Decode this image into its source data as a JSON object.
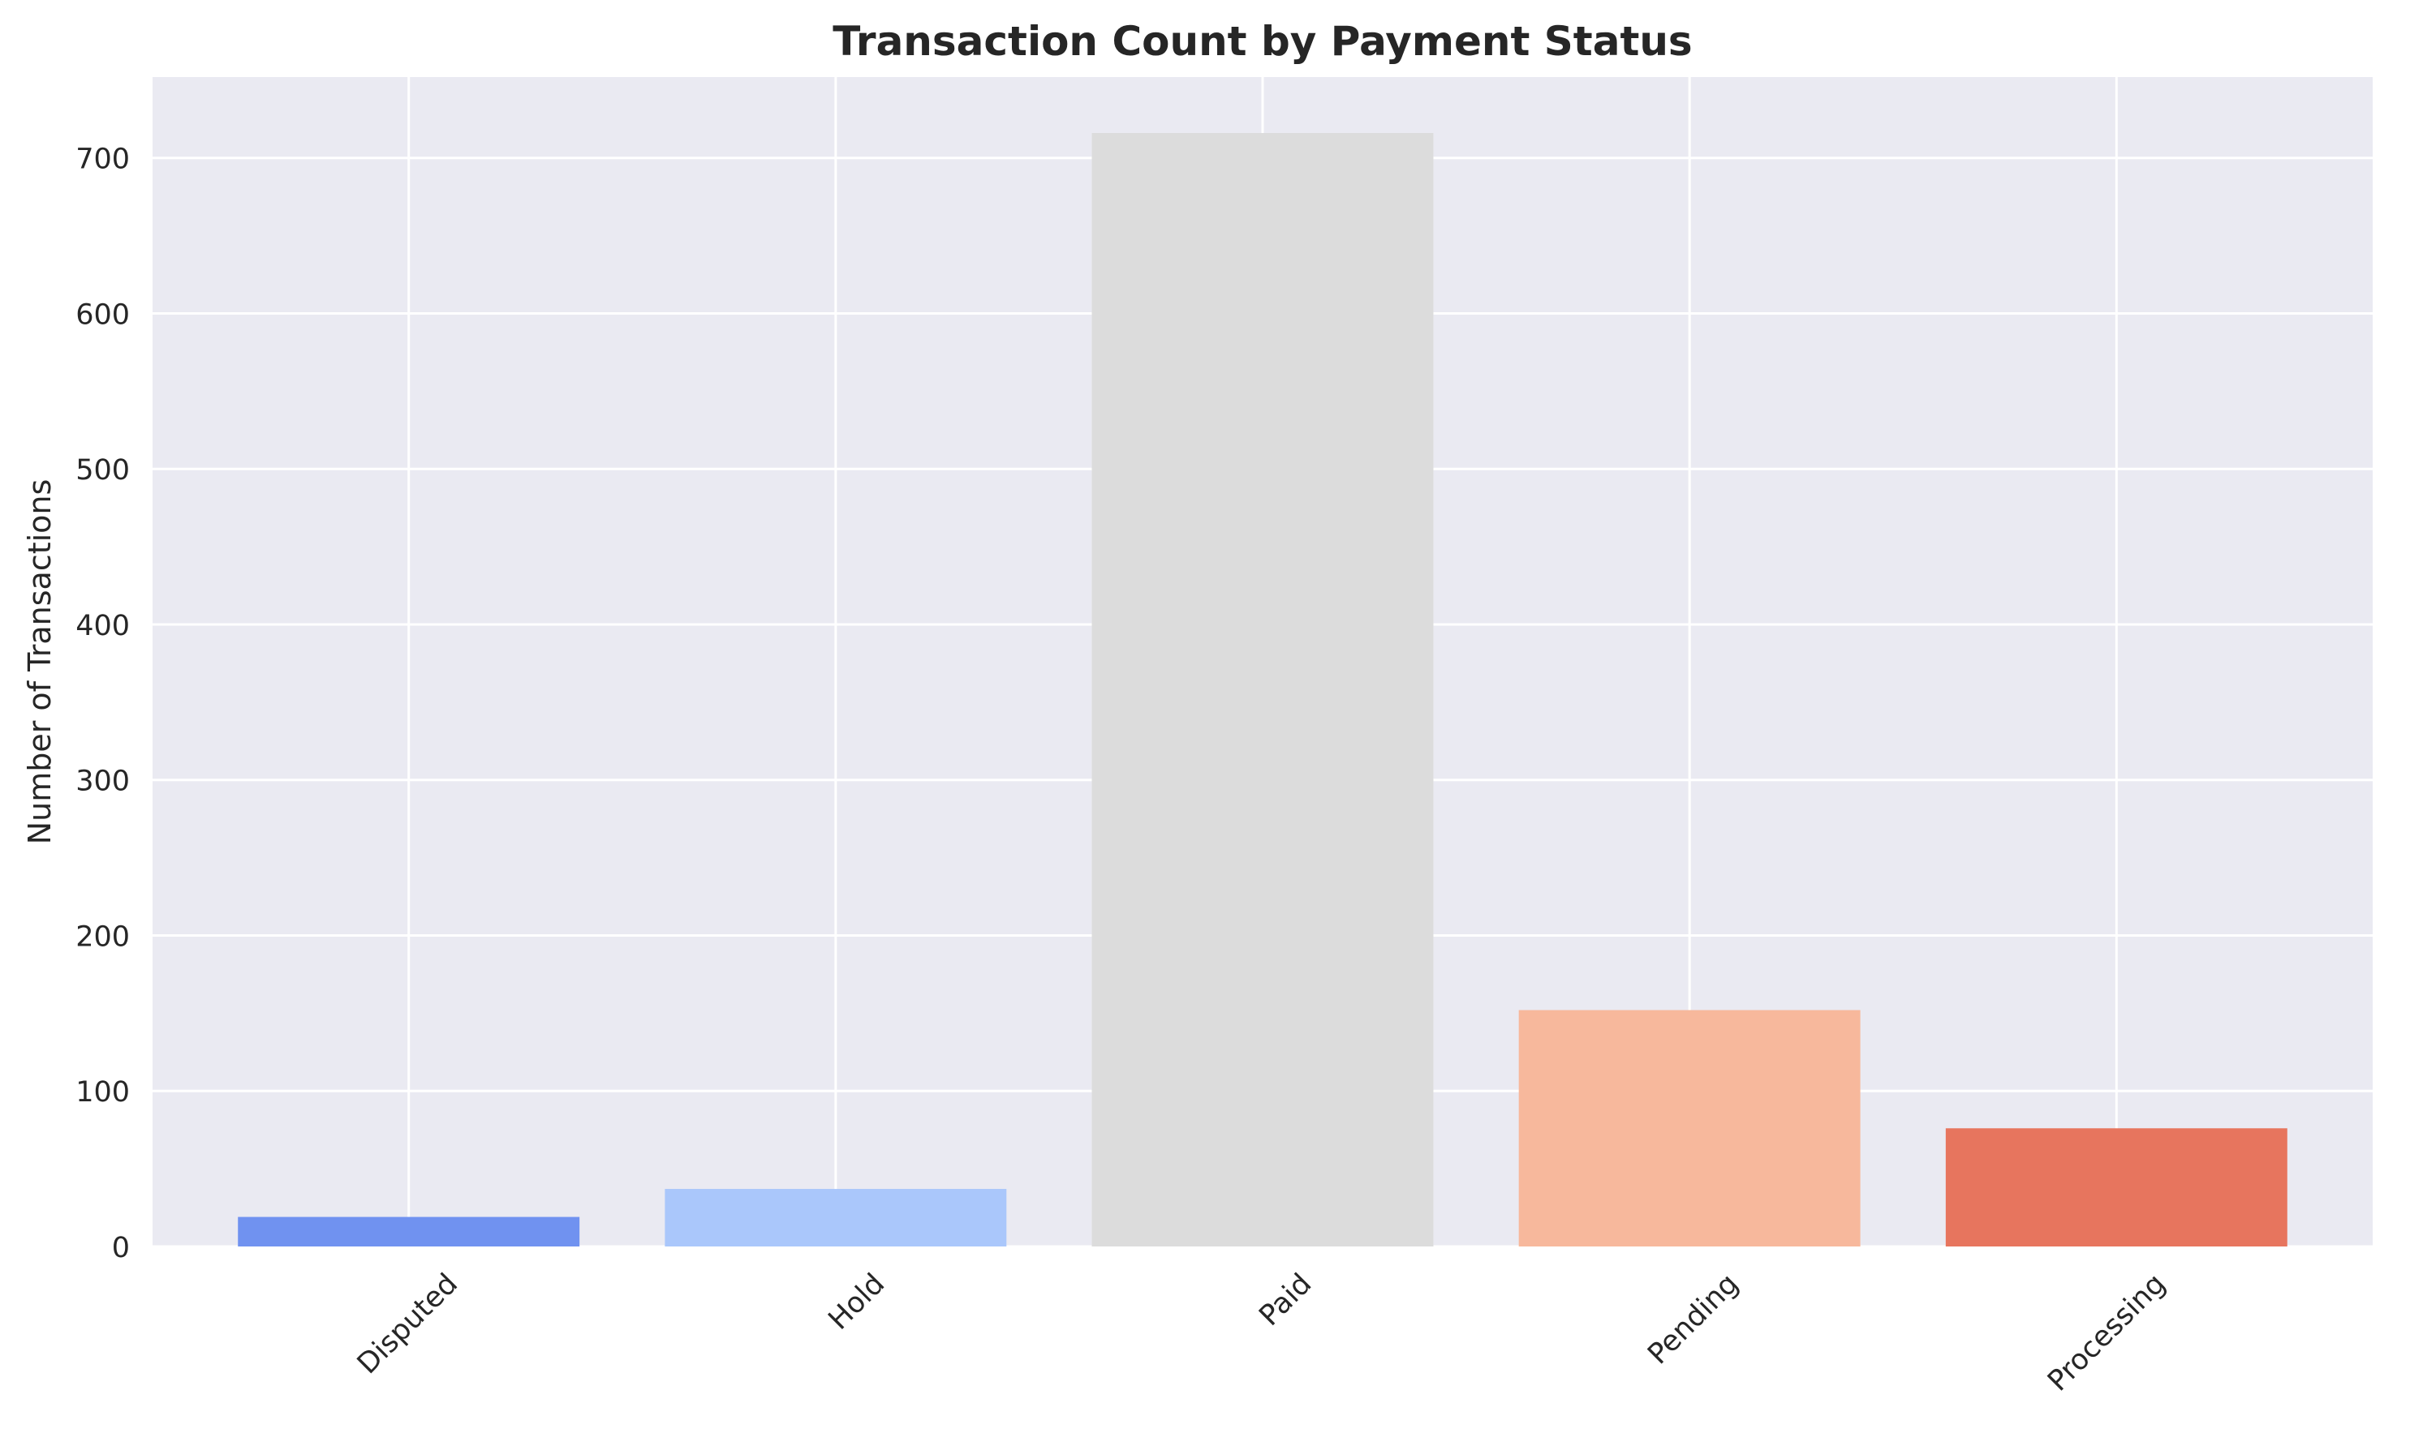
{
  "chart_data": {
    "type": "bar",
    "title": "Transaction Count by Payment Status",
    "xlabel": "",
    "ylabel": "Number of Transactions",
    "categories": [
      "Disputed",
      "Hold",
      "Paid",
      "Pending",
      "Processing"
    ],
    "values": [
      19,
      37,
      716,
      152,
      76
    ],
    "bar_colors": [
      "#7092f0",
      "#aac7fb",
      "#dcdcdc",
      "#f7b89c",
      "#e7755e"
    ],
    "ylim": [
      0,
      752
    ],
    "yticks": [
      0,
      100,
      200,
      300,
      400,
      500,
      600,
      700
    ],
    "grid": true,
    "legend": "none",
    "x_tick_rotation_deg": 45
  },
  "colors": {
    "plot_background": "#eaeaf2",
    "grid": "#ffffff",
    "text": "#262626"
  }
}
